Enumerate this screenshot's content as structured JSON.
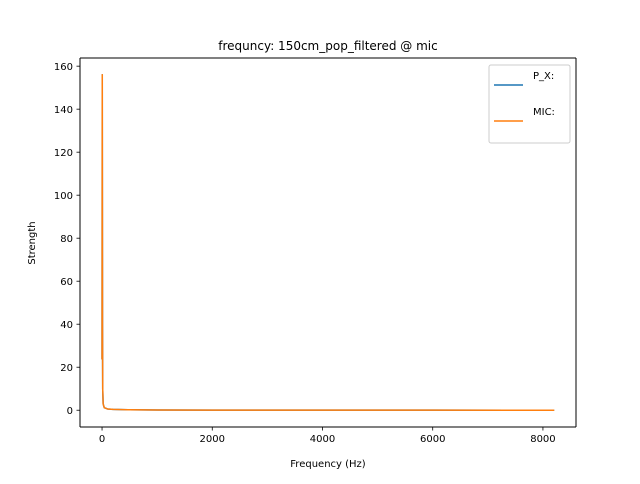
{
  "chart_data": {
    "type": "line",
    "title": "frequncy: 150cm_pop_filtered @ mic",
    "xlabel": "Frequency (Hz)",
    "ylabel": "Strength",
    "xlim": [
      -400,
      8600
    ],
    "ylim": [
      -7.8,
      163.8
    ],
    "xticks": [
      0,
      2000,
      4000,
      6000,
      8000
    ],
    "yticks": [
      0,
      20,
      40,
      60,
      80,
      100,
      120,
      140,
      160
    ],
    "grid": false,
    "legend": {
      "placement": "top-right"
    },
    "series": [
      {
        "name": "P_X:",
        "color": "#1f77b4",
        "x": [
          0,
          2,
          4,
          6,
          8,
          12,
          20,
          40,
          100,
          200,
          500,
          1000,
          2000,
          4000,
          6000,
          8191
        ],
        "y": [
          24,
          84,
          156,
          95,
          40,
          10,
          3,
          1.2,
          0.6,
          0.4,
          0.2,
          0.1,
          0.05,
          0.03,
          0.02,
          0.01
        ]
      },
      {
        "name": "MIC:",
        "color": "#ff7f0e",
        "x": [
          0,
          2,
          4,
          6,
          8,
          12,
          20,
          40,
          100,
          200,
          500,
          1000,
          2000,
          4000,
          6000,
          8191
        ],
        "y": [
          24,
          84,
          156,
          95,
          40,
          10,
          3,
          1.2,
          0.6,
          0.4,
          0.2,
          0.1,
          0.05,
          0.03,
          0.02,
          0.01
        ]
      }
    ]
  }
}
